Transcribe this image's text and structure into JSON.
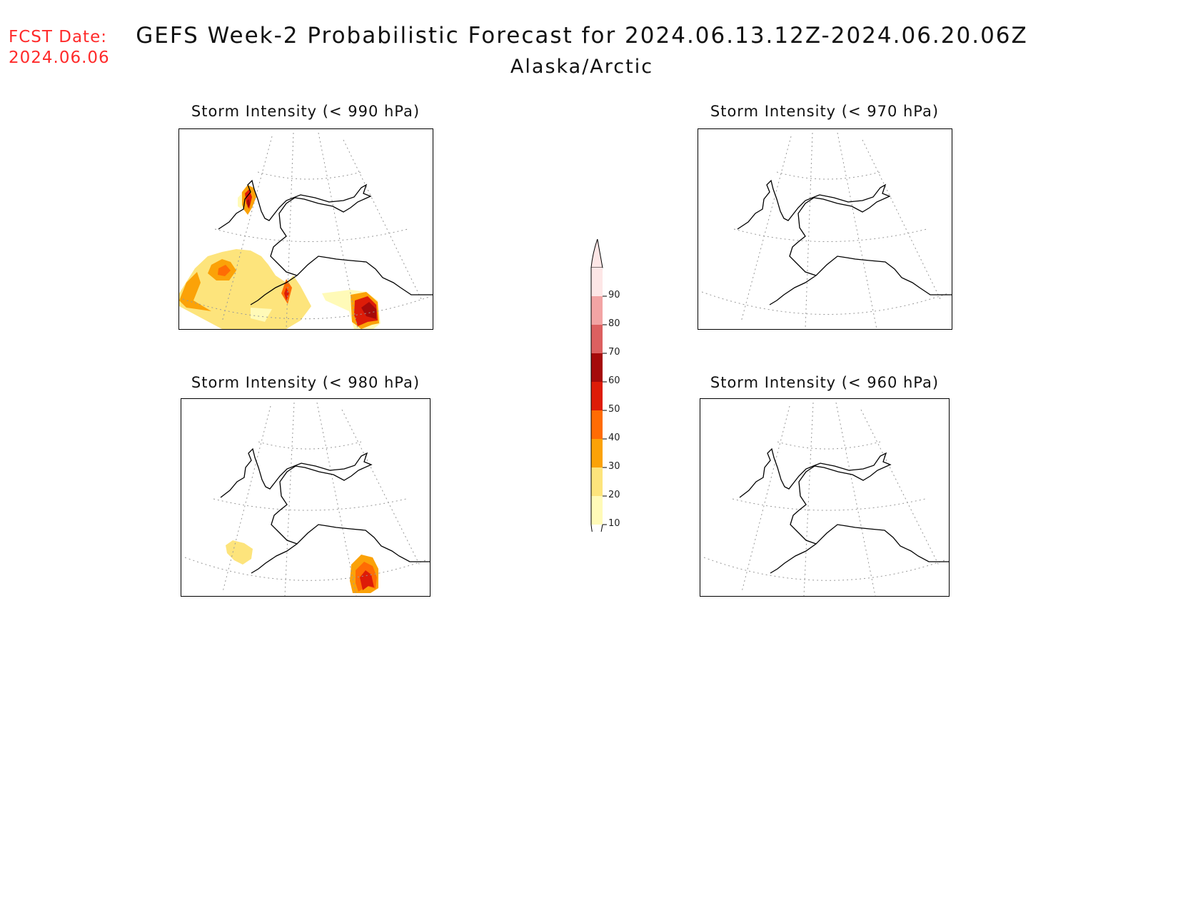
{
  "header": {
    "fcst_line1": "FCST Date:",
    "fcst_line2": "2024.06.06",
    "title": "GEFS Week-2 Probabilistic Forecast for 2024.06.13.12Z-2024.06.20.06Z",
    "subtitle": "Alaska/Arctic"
  },
  "panels": [
    {
      "id": "p990",
      "title": "Storm Intensity (< 990 hPa)"
    },
    {
      "id": "p970",
      "title": "Storm Intensity (< 970 hPa)"
    },
    {
      "id": "p980",
      "title": "Storm Intensity (< 980 hPa)"
    },
    {
      "id": "p960",
      "title": "Storm Intensity (< 960 hPa)"
    }
  ],
  "colorbar": {
    "labels": [
      "90",
      "80",
      "70",
      "60",
      "50",
      "40",
      "30",
      "20",
      "10"
    ],
    "colors": [
      "#fde6e6",
      "#f2a4a4",
      "#dc6060",
      "#a50a0a",
      "#dd1c08",
      "#ff6c04",
      "#fba208",
      "#fde47c",
      "#fffab8"
    ]
  },
  "colors": {
    "fcst_text": "#ff2a2a"
  }
}
